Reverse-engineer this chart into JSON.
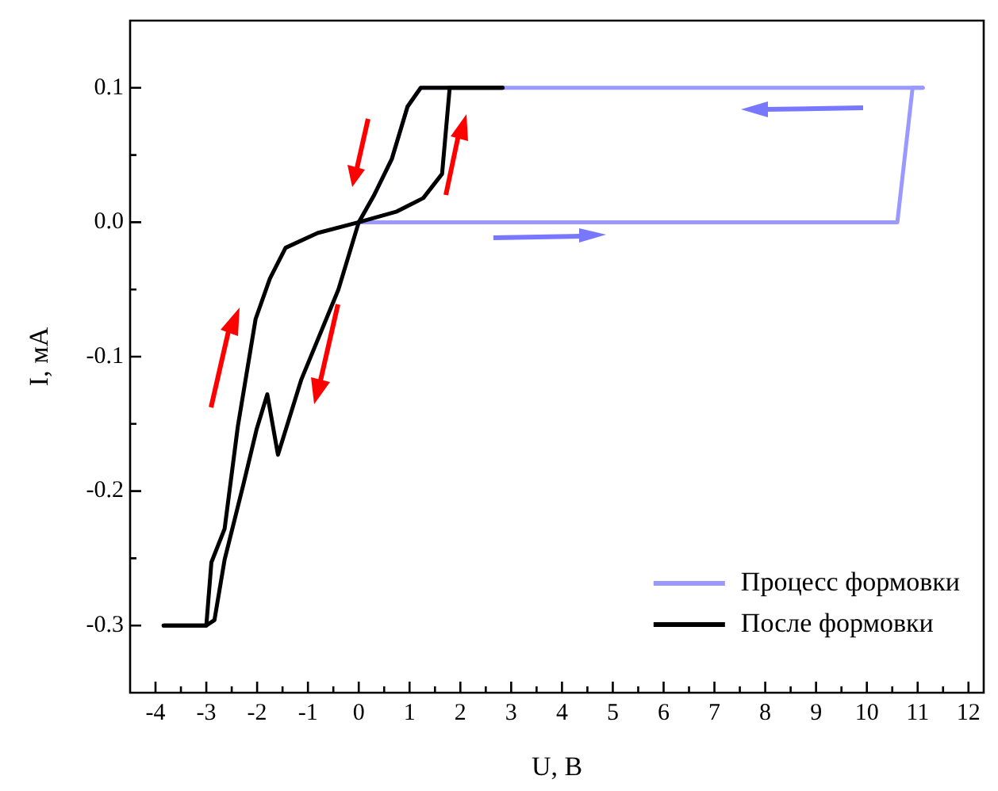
{
  "chart_data": {
    "type": "line",
    "xlabel": "U, В",
    "ylabel": "I, мА",
    "xlim": [
      -4.5,
      12.3
    ],
    "ylim": [
      -0.35,
      0.15
    ],
    "xticks": [
      -4,
      {
        "value": -3.5,
        "label": null
      },
      -3,
      {
        "value": -2.5,
        "label": null
      },
      -2,
      {
        "value": -1.5,
        "label": null
      },
      -1,
      {
        "value": -0.5,
        "label": null
      },
      0,
      {
        "value": 0.5,
        "label": null
      },
      1,
      {
        "value": 1.5,
        "label": null
      },
      2,
      {
        "value": 2.5,
        "label": null
      },
      3,
      {
        "value": 3.5,
        "label": null
      },
      4,
      {
        "value": 4.5,
        "label": null
      },
      5,
      {
        "value": 5.5,
        "label": null
      },
      6,
      {
        "value": 6.5,
        "label": null
      },
      7,
      {
        "value": 7.5,
        "label": null
      },
      8,
      {
        "value": 8.5,
        "label": null
      },
      9,
      {
        "value": 9.5,
        "label": null
      },
      10,
      {
        "value": 10.5,
        "label": null
      },
      11,
      {
        "value": 11.5,
        "label": null
      },
      12
    ],
    "yticks": [
      -0.3,
      {
        "value": -0.25,
        "label": null
      },
      -0.2,
      {
        "value": -0.15,
        "label": null
      },
      -0.1,
      {
        "value": -0.05,
        "label": null
      },
      {
        "value": 0,
        "label": "0.0"
      },
      {
        "value": 0.05,
        "label": null
      },
      0.1
    ],
    "legend": "bottom right",
    "marker": "none",
    "line_style": "solid",
    "grid": false,
    "series": [
      {
        "name": "Процесс формовки",
        "color": "#9999ff",
        "x": [
          0,
          10.6,
          10.9,
          11.1,
          1.22,
          0.96,
          0.65,
          0.3,
          0
        ],
        "values": [
          0,
          0,
          0.1,
          0.1,
          0.1,
          0.086,
          0.047,
          0.02,
          0
        ]
      },
      {
        "name": "После формовки",
        "color": "#000000",
        "x": [
          0,
          0.75,
          1.27,
          1.64,
          1.79,
          2.83,
          1.22,
          0.96,
          0.65,
          0.3,
          0,
          -0.4,
          -1.13,
          -1.59,
          -1.8,
          -2.01,
          -2.27,
          -2.64,
          -2.84,
          -3,
          -3.84,
          -3,
          -2.9,
          -2.64,
          -2.38,
          -2.03,
          -1.75,
          -1.44,
          -0.81,
          0
        ],
        "values": [
          0,
          0.008,
          0.018,
          0.036,
          0.1,
          0.1,
          0.1,
          0.086,
          0.047,
          0.02,
          0,
          -0.05,
          -0.117,
          -0.173,
          -0.128,
          -0.154,
          -0.195,
          -0.251,
          -0.296,
          -0.3,
          -0.3,
          -0.3,
          -0.253,
          -0.228,
          -0.152,
          -0.072,
          -0.042,
          -0.019,
          -0.008,
          0
        ]
      }
    ]
  }
}
